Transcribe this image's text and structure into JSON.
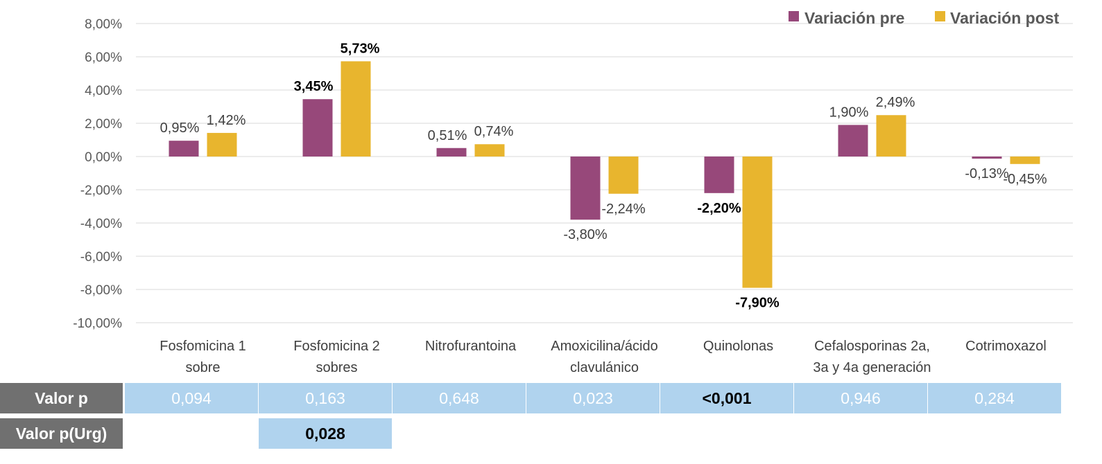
{
  "chart_data": {
    "type": "bar",
    "categories": [
      [
        "Fosfomicina 1",
        "sobre"
      ],
      [
        "Fosfomicina 2",
        "sobres"
      ],
      [
        "Nitrofurantoina"
      ],
      [
        "Amoxicilina/ácido",
        "clavulánico"
      ],
      [
        "Quinolonas"
      ],
      [
        "Cefalosporinas 2a,",
        "3a y 4a generación"
      ],
      [
        "Cotrimoxazol"
      ]
    ],
    "series": [
      {
        "name": "Variación pre",
        "color": "#97487a",
        "values": [
          0.95,
          3.45,
          0.51,
          -3.8,
          -2.2,
          1.9,
          -0.13
        ],
        "labels": [
          "0,95%",
          "3,45%",
          "0,51%",
          "-3,80%",
          "-2,20%",
          "1,90%",
          "-0,13%"
        ],
        "bold": [
          false,
          true,
          false,
          false,
          true,
          false,
          false
        ]
      },
      {
        "name": "Variación post",
        "color": "#e8b52e",
        "values": [
          1.42,
          5.73,
          0.74,
          -2.24,
          -7.9,
          2.49,
          -0.45
        ],
        "labels": [
          "1,42%",
          "5,73%",
          "0,74%",
          "-2,24%",
          "-7,90%",
          "2,49%",
          "-0,45%"
        ],
        "bold": [
          false,
          true,
          false,
          false,
          true,
          false,
          false
        ]
      }
    ],
    "ylim": [
      -10,
      8
    ],
    "yticks": [
      8,
      6,
      4,
      2,
      0,
      -2,
      -4,
      -6,
      -8,
      -10
    ],
    "ytick_labels": [
      "8,00%",
      "6,00%",
      "4,00%",
      "2,00%",
      "0,00%",
      "-2,00%",
      "-4,00%",
      "-6,00%",
      "-8,00%",
      "-10,00%"
    ],
    "grid": true,
    "legend_position": "top-right",
    "title": "",
    "xlabel": "",
    "ylabel": ""
  },
  "pvalue_table": {
    "row1": {
      "header": "Valor p",
      "values": [
        "0,094",
        "0,163",
        "0,648",
        "0,023",
        "<0,001",
        "0,946",
        "0,284"
      ],
      "bold": [
        false,
        false,
        false,
        false,
        true,
        false,
        false
      ]
    },
    "row2": {
      "header": "Valor p(Urg)",
      "values": [
        "",
        "0,028",
        "",
        "",
        "",
        "",
        ""
      ],
      "bold": [
        false,
        true,
        false,
        false,
        false,
        false,
        false
      ]
    }
  }
}
